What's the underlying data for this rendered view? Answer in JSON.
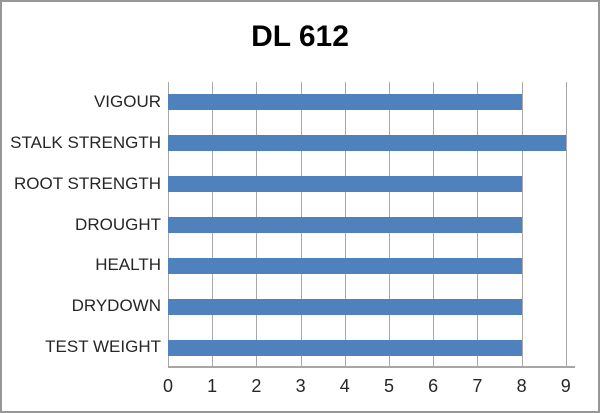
{
  "chart_data": {
    "type": "bar",
    "orientation": "horizontal",
    "title": "DL 612",
    "categories": [
      "VIGOUR",
      "STALK STRENGTH",
      "ROOT STRENGTH",
      "DROUGHT",
      "HEALTH",
      "DRYDOWN",
      "TEST WEIGHT"
    ],
    "values": [
      8,
      9,
      8,
      8,
      8,
      8,
      8
    ],
    "xlabel": "",
    "ylabel": "",
    "xlim": [
      0,
      9
    ],
    "x_ticks": [
      "0",
      "1",
      "2",
      "3",
      "4",
      "5",
      "6",
      "7",
      "8",
      "9"
    ],
    "grid": "vertical-major",
    "legend": "none",
    "colors": {
      "bar": "#4F81BD",
      "gridline": "#A8A8A8",
      "axis_line": "#A6A6A6",
      "label_text": "#262626",
      "title_text": "#000000",
      "background": "#FFFFFF",
      "frame_border": "#979797"
    }
  }
}
